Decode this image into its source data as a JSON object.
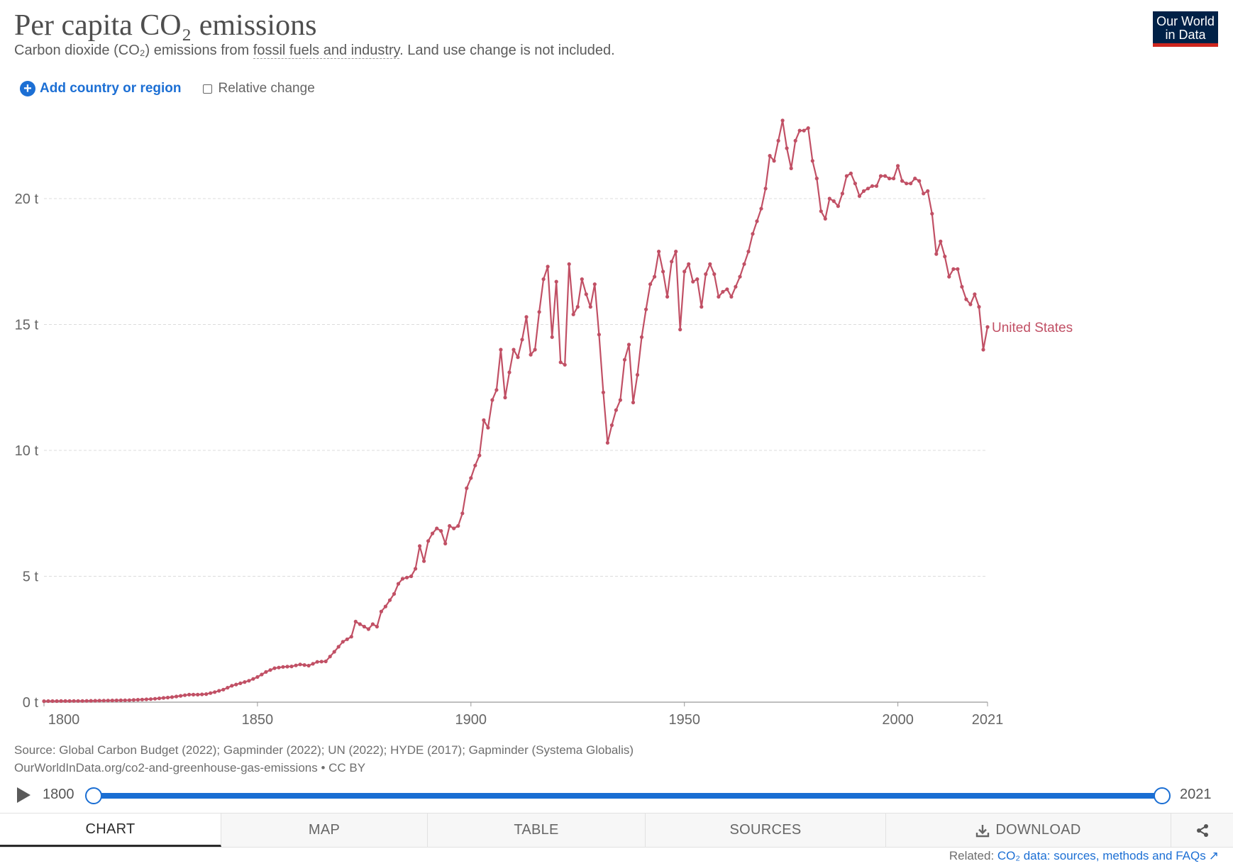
{
  "header": {
    "title": "Per capita CO₂ emissions",
    "subtitle_prefix": "Carbon dioxide (CO₂) emissions from ",
    "subtitle_link": "fossil fuels and industry",
    "subtitle_suffix": ". Land use change is not included.",
    "logo_line1": "Our World",
    "logo_line2": "in Data"
  },
  "controls": {
    "add_label": "Add country or region",
    "relative_label": "Relative change",
    "relative_checked": false
  },
  "chart_data": {
    "type": "line",
    "title": "Per capita CO₂ emissions",
    "xlabel": "",
    "ylabel": "",
    "xlim": [
      1800,
      2021
    ],
    "ylim": [
      0,
      23
    ],
    "yticks": [
      0,
      5,
      10,
      15,
      20
    ],
    "ytick_labels": [
      "0 t",
      "5 t",
      "10 t",
      "15 t",
      "20 t"
    ],
    "xticks": [
      1800,
      1850,
      1900,
      1950,
      2000,
      2021
    ],
    "xtick_labels": [
      "1800",
      "1850",
      "1900",
      "1950",
      "2000",
      "2021"
    ],
    "grid": true,
    "series": [
      {
        "name": "United States",
        "color": "#c15065",
        "anchors": [
          [
            1800,
            0.04
          ],
          [
            1810,
            0.05
          ],
          [
            1820,
            0.08
          ],
          [
            1825,
            0.12
          ],
          [
            1830,
            0.2
          ],
          [
            1832,
            0.25
          ],
          [
            1834,
            0.3
          ],
          [
            1836,
            0.3
          ],
          [
            1838,
            0.32
          ],
          [
            1840,
            0.4
          ],
          [
            1842,
            0.5
          ],
          [
            1844,
            0.65
          ],
          [
            1846,
            0.75
          ],
          [
            1848,
            0.85
          ],
          [
            1850,
            1.0
          ],
          [
            1852,
            1.2
          ],
          [
            1854,
            1.35
          ],
          [
            1856,
            1.4
          ],
          [
            1858,
            1.42
          ],
          [
            1860,
            1.5
          ],
          [
            1862,
            1.45
          ],
          [
            1864,
            1.6
          ],
          [
            1866,
            1.62
          ],
          [
            1868,
            2.0
          ],
          [
            1870,
            2.4
          ],
          [
            1872,
            2.6
          ],
          [
            1873,
            3.2
          ],
          [
            1874,
            3.1
          ],
          [
            1875,
            3.0
          ],
          [
            1876,
            2.9
          ],
          [
            1877,
            3.1
          ],
          [
            1878,
            3.0
          ],
          [
            1879,
            3.6
          ],
          [
            1880,
            3.8
          ],
          [
            1882,
            4.3
          ],
          [
            1883,
            4.7
          ],
          [
            1884,
            4.9
          ],
          [
            1886,
            5.0
          ],
          [
            1887,
            5.3
          ],
          [
            1888,
            6.2
          ],
          [
            1889,
            5.6
          ],
          [
            1890,
            6.4
          ],
          [
            1891,
            6.7
          ],
          [
            1892,
            6.9
          ],
          [
            1893,
            6.8
          ],
          [
            1894,
            6.3
          ],
          [
            1895,
            7.0
          ],
          [
            1896,
            6.9
          ],
          [
            1897,
            7.0
          ],
          [
            1898,
            7.5
          ],
          [
            1899,
            8.5
          ],
          [
            1900,
            8.9
          ],
          [
            1901,
            9.4
          ],
          [
            1902,
            9.8
          ],
          [
            1903,
            11.2
          ],
          [
            1904,
            10.9
          ],
          [
            1905,
            12.0
          ],
          [
            1906,
            12.4
          ],
          [
            1907,
            14.0
          ],
          [
            1908,
            12.1
          ],
          [
            1909,
            13.1
          ],
          [
            1910,
            14.0
          ],
          [
            1911,
            13.7
          ],
          [
            1912,
            14.4
          ],
          [
            1913,
            15.3
          ],
          [
            1914,
            13.8
          ],
          [
            1915,
            14.0
          ],
          [
            1916,
            15.5
          ],
          [
            1917,
            16.8
          ],
          [
            1918,
            17.3
          ],
          [
            1919,
            14.5
          ],
          [
            1920,
            16.7
          ],
          [
            1921,
            13.5
          ],
          [
            1922,
            13.4
          ],
          [
            1923,
            17.4
          ],
          [
            1924,
            15.4
          ],
          [
            1925,
            15.7
          ],
          [
            1926,
            16.8
          ],
          [
            1927,
            16.2
          ],
          [
            1928,
            15.7
          ],
          [
            1929,
            16.6
          ],
          [
            1930,
            14.6
          ],
          [
            1931,
            12.3
          ],
          [
            1932,
            10.3
          ],
          [
            1933,
            11.0
          ],
          [
            1934,
            11.6
          ],
          [
            1935,
            12.0
          ],
          [
            1936,
            13.6
          ],
          [
            1937,
            14.2
          ],
          [
            1938,
            11.9
          ],
          [
            1939,
            13.0
          ],
          [
            1940,
            14.5
          ],
          [
            1941,
            15.6
          ],
          [
            1942,
            16.6
          ],
          [
            1943,
            16.9
          ],
          [
            1944,
            17.9
          ],
          [
            1945,
            17.1
          ],
          [
            1946,
            16.1
          ],
          [
            1947,
            17.5
          ],
          [
            1948,
            17.9
          ],
          [
            1949,
            14.8
          ],
          [
            1950,
            17.1
          ],
          [
            1951,
            17.4
          ],
          [
            1952,
            16.7
          ],
          [
            1953,
            16.8
          ],
          [
            1954,
            15.7
          ],
          [
            1955,
            17.0
          ],
          [
            1956,
            17.4
          ],
          [
            1957,
            17.0
          ],
          [
            1958,
            16.1
          ],
          [
            1959,
            16.3
          ],
          [
            1960,
            16.4
          ],
          [
            1961,
            16.1
          ],
          [
            1962,
            16.5
          ],
          [
            1963,
            16.9
          ],
          [
            1964,
            17.4
          ],
          [
            1965,
            17.9
          ],
          [
            1966,
            18.6
          ],
          [
            1967,
            19.1
          ],
          [
            1968,
            19.6
          ],
          [
            1969,
            20.4
          ],
          [
            1970,
            21.7
          ],
          [
            1971,
            21.5
          ],
          [
            1972,
            22.3
          ],
          [
            1973,
            23.1
          ],
          [
            1974,
            22.0
          ],
          [
            1975,
            21.2
          ],
          [
            1976,
            22.3
          ],
          [
            1977,
            22.7
          ],
          [
            1978,
            22.7
          ],
          [
            1979,
            22.8
          ],
          [
            1980,
            21.5
          ],
          [
            1981,
            20.8
          ],
          [
            1982,
            19.5
          ],
          [
            1983,
            19.2
          ],
          [
            1984,
            20.0
          ],
          [
            1985,
            19.9
          ],
          [
            1986,
            19.7
          ],
          [
            1987,
            20.2
          ],
          [
            1988,
            20.9
          ],
          [
            1989,
            21.0
          ],
          [
            1990,
            20.6
          ],
          [
            1991,
            20.1
          ],
          [
            1992,
            20.3
          ],
          [
            1993,
            20.4
          ],
          [
            1994,
            20.5
          ],
          [
            1995,
            20.5
          ],
          [
            1996,
            20.9
          ],
          [
            1997,
            20.9
          ],
          [
            1998,
            20.8
          ],
          [
            1999,
            20.8
          ],
          [
            2000,
            21.3
          ],
          [
            2001,
            20.7
          ],
          [
            2002,
            20.6
          ],
          [
            2003,
            20.6
          ],
          [
            2004,
            20.8
          ],
          [
            2005,
            20.7
          ],
          [
            2006,
            20.2
          ],
          [
            2007,
            20.3
          ],
          [
            2008,
            19.4
          ],
          [
            2009,
            17.8
          ],
          [
            2010,
            18.3
          ],
          [
            2011,
            17.7
          ],
          [
            2012,
            16.9
          ],
          [
            2013,
            17.2
          ],
          [
            2014,
            17.2
          ],
          [
            2015,
            16.5
          ],
          [
            2016,
            16.0
          ],
          [
            2017,
            15.8
          ],
          [
            2018,
            16.2
          ],
          [
            2019,
            15.7
          ],
          [
            2020,
            14.0
          ],
          [
            2021,
            14.9
          ]
        ]
      }
    ]
  },
  "source": {
    "line1": "Source: Global Carbon Budget (2022); Gapminder (2022); UN (2022); HYDE (2017); Gapminder (Systema Globalis)",
    "line2": "OurWorldInData.org/co2-and-greenhouse-gas-emissions • CC BY"
  },
  "timeline": {
    "start_label": "1800",
    "end_label": "2021",
    "range_start": 1800,
    "range_end": 2021
  },
  "tabs": {
    "chart": "CHART",
    "map": "MAP",
    "table": "TABLE",
    "sources": "SOURCES",
    "download": "DOWNLOAD",
    "active": "chart"
  },
  "related": {
    "prefix": "Related: ",
    "link": "CO₂ data: sources, methods and FAQs"
  },
  "icons": {
    "add": "plus-circle-icon",
    "play": "play-icon",
    "download": "download-icon",
    "share": "share-icon",
    "external": "external-link-icon"
  }
}
